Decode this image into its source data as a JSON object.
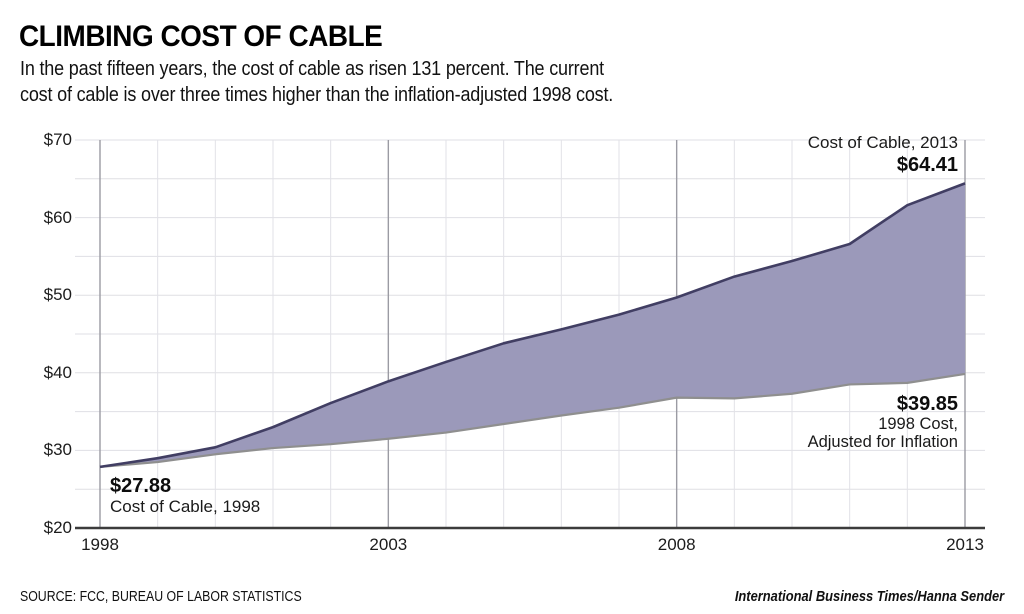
{
  "header": {
    "title": "CLIMBING COST OF CABLE",
    "subtitle_line1": "In the past fifteen years, the cost of cable as risen 131 percent. The current",
    "subtitle_line2": "cost of cable is over three times higher than the inflation-adjusted 1998 cost."
  },
  "chart_data": {
    "type": "area",
    "title": "Climbing Cost of Cable",
    "x": [
      1998,
      1999,
      2000,
      2001,
      2002,
      2003,
      2004,
      2005,
      2006,
      2007,
      2008,
      2009,
      2010,
      2011,
      2012,
      2013
    ],
    "series": [
      {
        "name": "Cost of Cable",
        "line_color": "#413e63",
        "values": [
          27.88,
          29.0,
          30.4,
          33.0,
          36.1,
          38.9,
          41.4,
          43.8,
          45.6,
          47.5,
          49.7,
          52.4,
          54.4,
          56.6,
          61.6,
          64.41
        ]
      },
      {
        "name": "1998 Cost, Adjusted for Inflation",
        "line_color": "#8f8f8f",
        "values": [
          27.88,
          28.5,
          29.5,
          30.3,
          30.8,
          31.5,
          32.3,
          33.4,
          34.5,
          35.5,
          36.8,
          36.7,
          37.3,
          38.5,
          38.7,
          39.85
        ]
      }
    ],
    "band_fill": "#9b99ba",
    "xlabel": "",
    "ylabel": "",
    "xlim": [
      1998,
      2013
    ],
    "ylim": [
      20,
      70
    ],
    "y_ticks": [
      {
        "value": 20,
        "label": "$20"
      },
      {
        "value": 30,
        "label": "$30"
      },
      {
        "value": 40,
        "label": "$40"
      },
      {
        "value": 50,
        "label": "$50"
      },
      {
        "value": 60,
        "label": "$60"
      },
      {
        "value": 70,
        "label": "$70"
      }
    ],
    "y_minor_step": 5,
    "x_ticks": [
      {
        "value": 1998,
        "label": "1998"
      },
      {
        "value": 2003,
        "label": "2003"
      },
      {
        "value": 2008,
        "label": "2008"
      },
      {
        "value": 2013,
        "label": "2013"
      }
    ],
    "grid": {
      "horizontal_color": "#dfdfe4",
      "vertical_minor_color": "#e2e2e7",
      "vertical_major_color": "#9b9ba3"
    },
    "axis_color": "#3c3c3c",
    "legend_position": "none",
    "annotations": [
      {
        "text": "Cost of Cable, 2013 / $64.41",
        "anchor": "top-right"
      },
      {
        "text": "$27.88 / Cost of Cable, 1998",
        "anchor": "start"
      },
      {
        "text": "$39.85 / 1998 Cost, Adjusted for Inflation",
        "anchor": "right"
      }
    ]
  },
  "annotations": {
    "cable_2013": {
      "label": "Cost of Cable, 2013",
      "value": "$64.41"
    },
    "cable_1998": {
      "value": "$27.88",
      "label": "Cost of Cable, 1998"
    },
    "inflation_2013": {
      "value": "$39.85",
      "label_line1": "1998 Cost,",
      "label_line2": "Adjusted for Inflation"
    }
  },
  "footer": {
    "source": "SOURCE: FCC, BUREAU OF LABOR STATISTICS",
    "credit": "International Business Times/Hanna Sender"
  }
}
